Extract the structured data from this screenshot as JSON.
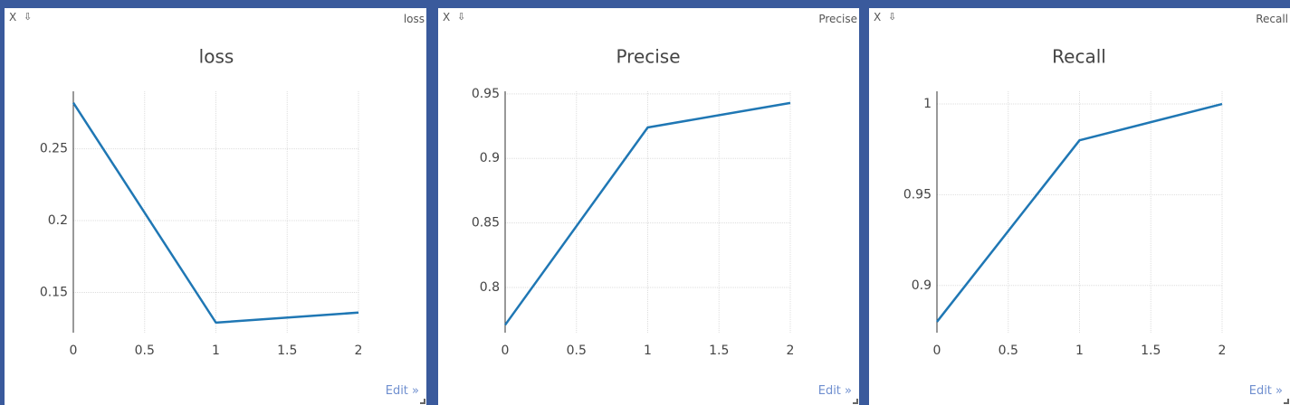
{
  "panes": [
    {
      "id": "loss",
      "close_label": "X",
      "download_label": "⇩",
      "corner_label": "loss",
      "edit_label": "Edit »"
    },
    {
      "id": "precise",
      "close_label": "X",
      "download_label": "⇩",
      "corner_label": "Precise",
      "edit_label": "Edit »"
    },
    {
      "id": "recall",
      "close_label": "X",
      "download_label": "⇩",
      "corner_label": "Recall",
      "edit_label": "Edit »"
    }
  ],
  "colors": {
    "background": "#3a5a9c",
    "line": "#1f77b4",
    "grid": "#dddddd",
    "edit_link": "#6f8fcf"
  },
  "chart_data": [
    {
      "type": "line",
      "title": "loss",
      "xlabel": "",
      "ylabel": "",
      "x": [
        0,
        1,
        2
      ],
      "series": [
        {
          "values": [
            0.282,
            0.129,
            0.136
          ]
        }
      ],
      "xlim": [
        0,
        2
      ],
      "ylim": [
        0.122,
        0.29
      ],
      "xticks": [
        0,
        0.5,
        1,
        1.5,
        2
      ],
      "xtick_labels": [
        "0",
        "0.5",
        "1",
        "1.5",
        "2"
      ],
      "yticks": [
        0.15,
        0.2,
        0.25
      ],
      "ytick_labels": [
        "0.15",
        "0.2",
        "0.25"
      ],
      "grid": true,
      "legend": "none"
    },
    {
      "type": "line",
      "title": "Precise",
      "xlabel": "",
      "ylabel": "",
      "x": [
        0,
        1,
        2
      ],
      "series": [
        {
          "values": [
            0.771,
            0.924,
            0.943
          ]
        }
      ],
      "xlim": [
        0,
        2
      ],
      "ylim": [
        0.765,
        0.952
      ],
      "xticks": [
        0,
        0.5,
        1,
        1.5,
        2
      ],
      "xtick_labels": [
        "0",
        "0.5",
        "1",
        "1.5",
        "2"
      ],
      "yticks": [
        0.8,
        0.85,
        0.9,
        0.95
      ],
      "ytick_labels": [
        "0.8",
        "0.85",
        "0.9",
        "0.95"
      ],
      "grid": true,
      "legend": "none"
    },
    {
      "type": "line",
      "title": "Recall",
      "xlabel": "",
      "ylabel": "",
      "x": [
        0,
        1,
        2
      ],
      "series": [
        {
          "values": [
            0.88,
            0.98,
            1.0
          ]
        }
      ],
      "xlim": [
        0,
        2
      ],
      "ylim": [
        0.874,
        1.007
      ],
      "xticks": [
        0,
        0.5,
        1,
        1.5,
        2
      ],
      "xtick_labels": [
        "0",
        "0.5",
        "1",
        "1.5",
        "2"
      ],
      "yticks": [
        0.9,
        0.95,
        1
      ],
      "ytick_labels": [
        "0.9",
        "0.95",
        "1"
      ],
      "grid": true,
      "legend": "none"
    }
  ]
}
